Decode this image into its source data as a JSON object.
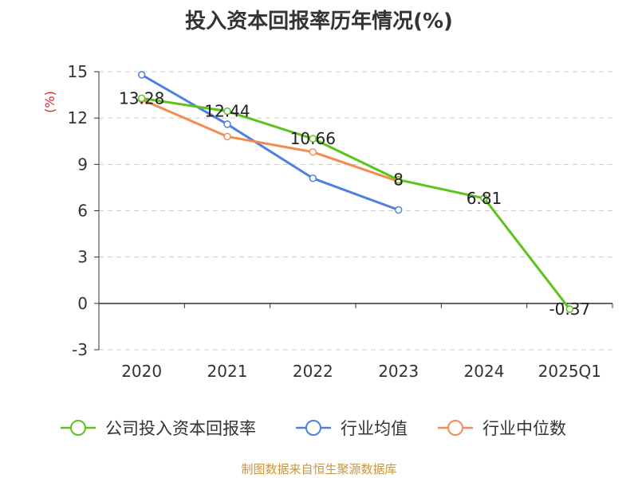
{
  "title": "投入资本回报率历年情况(%)",
  "source": "制图数据来自恒生聚源数据库",
  "colors": {
    "company": "#5ec21d",
    "industry_avg": "#4f80e0",
    "industry_median": "#f48b53",
    "unit_label": "#e0241b",
    "axis": "#333333",
    "grid": "#cccccc",
    "source": "#c8963e"
  },
  "chart_data": {
    "type": "line",
    "title": "投入资本回报率历年情况(%)",
    "ylabel": "(%)",
    "xlabel": "",
    "ylim": [
      -3,
      15
    ],
    "yticks": [
      "-3",
      "0",
      "3",
      "6",
      "9",
      "12",
      "15"
    ],
    "categories": [
      "2020",
      "2021",
      "2022",
      "2023",
      "2024",
      "2025Q1"
    ],
    "grid": true,
    "legend_position": "bottom",
    "series": [
      {
        "name": "公司投入资本回报率",
        "color": "#5ec21d",
        "values": [
          13.28,
          12.44,
          10.66,
          8,
          6.81,
          -0.37
        ],
        "labels": [
          "13.28",
          "12.44",
          "10.66",
          "8",
          "6.81",
          "-0.37"
        ]
      },
      {
        "name": "行业均值",
        "color": "#4f80e0",
        "values": [
          14.8,
          11.6,
          8.1,
          6.05,
          null,
          null
        ]
      },
      {
        "name": "行业中位数",
        "color": "#f48b53",
        "values": [
          13.2,
          10.8,
          9.8,
          7.9,
          null,
          null
        ]
      }
    ]
  }
}
